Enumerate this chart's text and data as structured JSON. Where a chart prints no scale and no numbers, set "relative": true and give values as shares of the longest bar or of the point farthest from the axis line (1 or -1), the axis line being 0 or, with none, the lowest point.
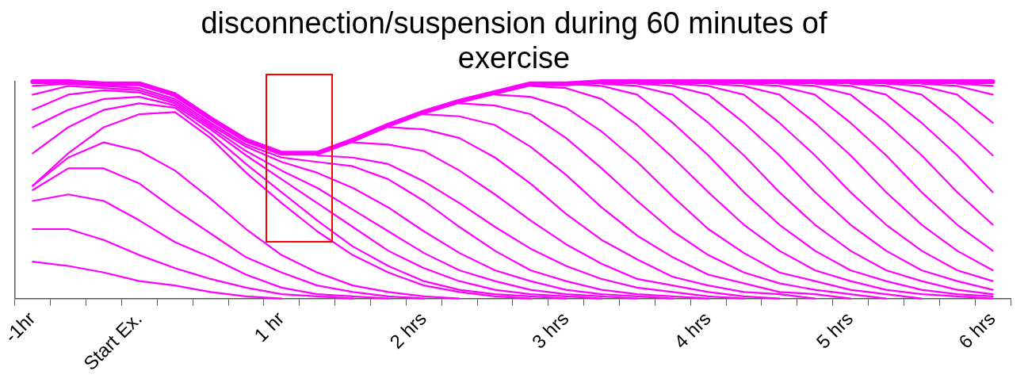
{
  "chart_data": {
    "type": "line",
    "title": "disconnection/suspension during 60 minutes of exercise",
    "relative": true,
    "tick_labels": "x",
    "categories": [
      "-1hr",
      null,
      null,
      "Start Ex.",
      null,
      null,
      null,
      "1 hr",
      null,
      null,
      null,
      "2 hrs",
      null,
      null,
      null,
      "3 hrs",
      null,
      null,
      null,
      "4 hrs",
      null,
      null,
      null,
      "5 hrs",
      null,
      null,
      null,
      "6 hrs"
    ],
    "series": [
      {
        "color": "#ff00ff",
        "values": [
          1.0,
          1.0,
          0.99,
          0.99,
          0.94,
          0.83,
          0.73,
          0.67,
          0.67,
          0.73,
          0.8,
          0.86,
          0.91,
          0.95,
          0.99,
          0.99,
          1.0,
          1.0,
          1.0,
          1.0,
          1.0,
          1.0,
          1.0,
          1.0,
          1.0,
          1.0,
          1.0,
          1.0
        ]
      },
      {
        "color": "#ff00ff",
        "values": [
          0.98,
          0.99,
          0.98,
          0.97,
          0.92,
          0.81,
          0.71,
          0.65,
          0.63,
          0.61,
          0.55,
          0.45,
          0.33,
          0.22,
          0.13,
          0.08,
          0.04,
          0.02,
          0.01,
          0,
          null,
          null,
          null,
          null,
          null,
          null,
          null,
          null
        ]
      },
      {
        "color": "#ff00ff",
        "values": [
          0.94,
          0.98,
          0.97,
          0.96,
          0.91,
          0.8,
          0.7,
          0.63,
          0.58,
          0.51,
          0.42,
          0.31,
          0.21,
          0.13,
          0.08,
          0.04,
          0.02,
          0.01,
          0,
          null,
          null,
          null,
          null,
          null,
          null,
          null,
          null,
          null
        ]
      },
      {
        "color": "#ff00ff",
        "values": [
          0.87,
          0.94,
          0.96,
          0.95,
          0.9,
          0.79,
          0.68,
          0.59,
          0.51,
          0.41,
          0.31,
          0.21,
          0.13,
          0.08,
          0.04,
          0.02,
          0.01,
          0,
          null,
          null,
          null,
          null,
          null,
          null,
          null,
          null,
          null,
          null
        ]
      },
      {
        "color": "#ff00ff",
        "values": [
          0.79,
          0.87,
          0.92,
          0.93,
          0.89,
          0.78,
          0.66,
          0.55,
          0.44,
          0.33,
          0.22,
          0.14,
          0.08,
          0.04,
          0.02,
          0.01,
          0,
          null,
          null,
          null,
          null,
          null,
          null,
          null,
          null,
          null,
          null,
          null
        ]
      },
      {
        "color": "#ff00ff",
        "values": [
          0.67,
          0.79,
          0.87,
          0.9,
          0.88,
          0.76,
          0.62,
          0.49,
          0.36,
          0.24,
          0.15,
          0.08,
          0.04,
          0.02,
          0.01,
          0,
          null,
          null,
          null,
          null,
          null,
          null,
          null,
          null,
          null,
          null,
          null,
          null
        ]
      },
      {
        "color": "#ff00ff",
        "values": [
          0.52,
          0.67,
          0.79,
          0.85,
          0.86,
          0.74,
          0.58,
          0.44,
          0.31,
          0.2,
          0.12,
          0.06,
          0.03,
          0.01,
          0,
          null,
          null,
          null,
          null,
          null,
          null,
          null,
          null,
          null,
          null,
          null,
          null,
          null
        ]
      },
      {
        "color": "#ff00ff",
        "values": [
          0.52,
          0.65,
          0.72,
          0.68,
          0.59,
          0.46,
          0.32,
          0.2,
          0.12,
          0.06,
          0.03,
          0.01,
          0,
          null,
          null,
          null,
          null,
          null,
          null,
          null,
          null,
          null,
          null,
          null,
          null,
          null,
          null,
          null
        ]
      },
      {
        "color": "#ff00ff",
        "values": [
          0.5,
          0.6,
          0.6,
          0.53,
          0.41,
          0.3,
          0.19,
          0.12,
          0.06,
          0.03,
          0.01,
          0,
          null,
          null,
          null,
          null,
          null,
          null,
          null,
          null,
          null,
          null,
          null,
          null,
          null,
          null,
          null,
          null
        ]
      },
      {
        "color": "#ff00ff",
        "values": [
          0.45,
          0.48,
          0.45,
          0.36,
          0.26,
          0.19,
          0.11,
          0.05,
          0.02,
          0.01,
          0,
          null,
          null,
          null,
          null,
          null,
          null,
          null,
          null,
          null,
          null,
          null,
          null,
          null,
          null,
          null,
          null,
          null
        ]
      },
      {
        "color": "#ff00ff",
        "values": [
          0.32,
          0.32,
          0.27,
          0.2,
          0.14,
          0.09,
          0.05,
          0.02,
          0.01,
          0,
          null,
          null,
          null,
          null,
          null,
          null,
          null,
          null,
          null,
          null,
          null,
          null,
          null,
          null,
          null,
          null,
          null,
          null
        ]
      },
      {
        "color": "#ff00ff",
        "values": [
          0.17,
          0.15,
          0.12,
          0.08,
          0.06,
          0.03,
          0.01,
          0,
          null,
          null,
          null,
          null,
          null,
          null,
          null,
          null,
          null,
          null,
          null,
          null,
          null,
          null,
          null,
          null,
          null,
          null,
          null,
          null
        ]
      },
      {
        "color": "#ff00ff",
        "values": [
          null,
          null,
          null,
          null,
          null,
          null,
          null,
          null,
          0.66,
          0.65,
          0.62,
          0.54,
          0.44,
          0.33,
          0.23,
          0.15,
          0.09,
          0.05,
          0.03,
          0.01,
          0,
          null,
          null,
          null,
          null,
          null,
          null,
          null
        ]
      },
      {
        "color": "#ff00ff",
        "values": [
          null,
          null,
          null,
          null,
          null,
          null,
          null,
          null,
          null,
          0.72,
          0.71,
          0.68,
          0.59,
          0.48,
          0.36,
          0.25,
          0.16,
          0.09,
          0.06,
          0.03,
          0.01,
          0,
          null,
          null,
          null,
          null,
          null,
          null
        ]
      },
      {
        "color": "#ff00ff",
        "values": [
          null,
          null,
          null,
          null,
          null,
          null,
          null,
          null,
          null,
          null,
          0.79,
          0.78,
          0.74,
          0.65,
          0.53,
          0.39,
          0.27,
          0.18,
          0.1,
          0.06,
          0.03,
          0.02,
          0,
          null,
          null,
          null,
          null,
          null
        ]
      },
      {
        "color": "#ff00ff",
        "values": [
          null,
          null,
          null,
          null,
          null,
          null,
          null,
          null,
          null,
          null,
          null,
          0.85,
          0.84,
          0.8,
          0.7,
          0.57,
          0.42,
          0.29,
          0.19,
          0.11,
          0.07,
          0.03,
          0.02,
          0,
          null,
          null,
          null,
          null
        ]
      },
      {
        "color": "#ff00ff",
        "values": [
          null,
          null,
          null,
          null,
          null,
          null,
          null,
          null,
          null,
          null,
          null,
          null,
          0.9,
          0.89,
          0.85,
          0.74,
          0.6,
          0.45,
          0.31,
          0.2,
          0.12,
          0.07,
          0.04,
          0.02,
          0,
          null,
          null,
          null
        ]
      },
      {
        "color": "#ff00ff",
        "values": [
          null,
          null,
          null,
          null,
          null,
          null,
          null,
          null,
          null,
          null,
          null,
          null,
          null,
          0.94,
          0.93,
          0.88,
          0.77,
          0.63,
          0.47,
          0.32,
          0.21,
          0.12,
          0.08,
          0.04,
          0.02,
          0,
          null,
          null
        ]
      },
      {
        "color": "#ff00ff",
        "values": [
          null,
          null,
          null,
          null,
          null,
          null,
          null,
          null,
          null,
          null,
          null,
          null,
          null,
          null,
          0.98,
          0.97,
          0.92,
          0.8,
          0.65,
          0.49,
          0.34,
          0.22,
          0.13,
          0.08,
          0.04,
          0.02,
          0.01,
          0
        ]
      },
      {
        "color": "#ff00ff",
        "values": [
          null,
          null,
          null,
          null,
          null,
          null,
          null,
          null,
          null,
          null,
          null,
          null,
          null,
          null,
          null,
          0.99,
          0.98,
          0.94,
          0.81,
          0.66,
          0.49,
          0.34,
          0.22,
          0.13,
          0.08,
          0.04,
          0.02,
          0.01
        ]
      },
      {
        "color": "#ff00ff",
        "values": [
          null,
          null,
          null,
          null,
          null,
          null,
          null,
          null,
          null,
          null,
          null,
          null,
          null,
          null,
          null,
          null,
          0.99,
          0.98,
          0.94,
          0.81,
          0.66,
          0.49,
          0.34,
          0.22,
          0.13,
          0.08,
          0.04,
          0.02
        ]
      },
      {
        "color": "#ff00ff",
        "values": [
          null,
          null,
          null,
          null,
          null,
          null,
          null,
          null,
          null,
          null,
          null,
          null,
          null,
          null,
          null,
          null,
          null,
          0.99,
          0.98,
          0.94,
          0.81,
          0.66,
          0.49,
          0.34,
          0.22,
          0.13,
          0.08,
          0.04
        ]
      },
      {
        "color": "#ff00ff",
        "values": [
          null,
          null,
          null,
          null,
          null,
          null,
          null,
          null,
          null,
          null,
          null,
          null,
          null,
          null,
          null,
          null,
          null,
          null,
          0.99,
          0.98,
          0.94,
          0.81,
          0.66,
          0.49,
          0.34,
          0.22,
          0.13,
          0.08
        ]
      },
      {
        "color": "#ff00ff",
        "values": [
          null,
          null,
          null,
          null,
          null,
          null,
          null,
          null,
          null,
          null,
          null,
          null,
          null,
          null,
          null,
          null,
          null,
          null,
          null,
          0.99,
          0.98,
          0.94,
          0.81,
          0.66,
          0.49,
          0.34,
          0.22,
          0.13
        ]
      },
      {
        "color": "#ff00ff",
        "values": [
          null,
          null,
          null,
          null,
          null,
          null,
          null,
          null,
          null,
          null,
          null,
          null,
          null,
          null,
          null,
          null,
          null,
          null,
          null,
          null,
          0.99,
          0.98,
          0.94,
          0.81,
          0.66,
          0.49,
          0.34,
          0.22
        ]
      },
      {
        "color": "#ff00ff",
        "values": [
          null,
          null,
          null,
          null,
          null,
          null,
          null,
          null,
          null,
          null,
          null,
          null,
          null,
          null,
          null,
          null,
          null,
          null,
          null,
          null,
          null,
          0.99,
          0.98,
          0.94,
          0.81,
          0.66,
          0.49,
          0.34
        ]
      },
      {
        "color": "#ff00ff",
        "values": [
          null,
          null,
          null,
          null,
          null,
          null,
          null,
          null,
          null,
          null,
          null,
          null,
          null,
          null,
          null,
          null,
          null,
          null,
          null,
          null,
          null,
          null,
          0.99,
          0.98,
          0.94,
          0.81,
          0.66,
          0.49
        ]
      },
      {
        "color": "#ff00ff",
        "values": [
          null,
          null,
          null,
          null,
          null,
          null,
          null,
          null,
          null,
          null,
          null,
          null,
          null,
          null,
          null,
          null,
          null,
          null,
          null,
          null,
          null,
          null,
          null,
          0.99,
          0.98,
          0.94,
          0.81,
          0.66
        ]
      },
      {
        "color": "#ff00ff",
        "values": [
          null,
          null,
          null,
          null,
          null,
          null,
          null,
          null,
          null,
          null,
          null,
          null,
          null,
          null,
          null,
          null,
          null,
          null,
          null,
          null,
          null,
          null,
          null,
          null,
          0.99,
          0.98,
          0.94,
          0.81
        ]
      },
      {
        "color": "#ff00ff",
        "values": [
          null,
          null,
          null,
          null,
          null,
          null,
          null,
          null,
          null,
          null,
          null,
          null,
          null,
          null,
          null,
          null,
          null,
          null,
          null,
          null,
          null,
          null,
          null,
          null,
          null,
          0.99,
          0.98,
          0.94
        ]
      },
      {
        "color": "#ff00ff",
        "values": [
          null,
          null,
          null,
          null,
          null,
          null,
          null,
          null,
          null,
          null,
          null,
          null,
          null,
          null,
          null,
          null,
          null,
          null,
          null,
          null,
          null,
          null,
          null,
          null,
          null,
          null,
          0.99,
          0.98
        ]
      }
    ]
  }
}
